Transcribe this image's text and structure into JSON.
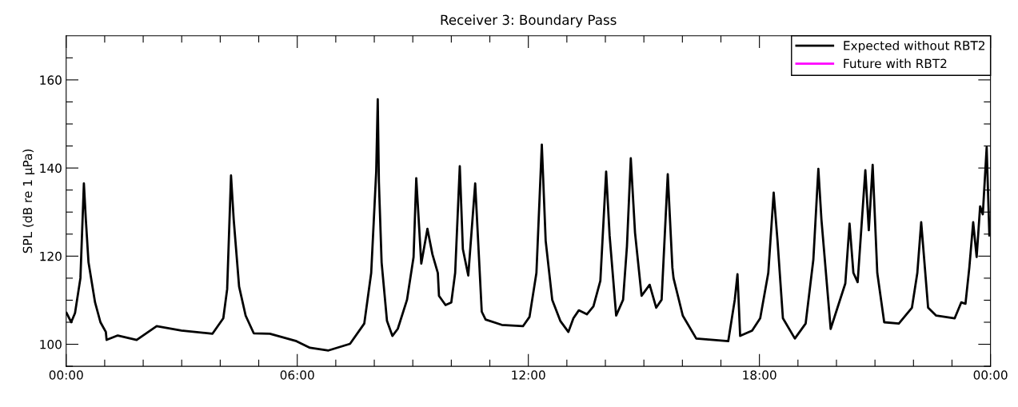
{
  "chart_data": {
    "type": "line",
    "title": "Receiver 3: Boundary Pass",
    "ylabel": "SPL (dB re 1 μPa)",
    "xlim": [
      0,
      24
    ],
    "ylim": [
      95,
      170
    ],
    "xticks": [
      {
        "value": 0,
        "label": "00:00"
      },
      {
        "value": 1,
        "label": null
      },
      {
        "value": 2,
        "label": null
      },
      {
        "value": 3,
        "label": null
      },
      {
        "value": 4,
        "label": null
      },
      {
        "value": 5,
        "label": null
      },
      {
        "value": 6,
        "label": "06:00"
      },
      {
        "value": 7,
        "label": null
      },
      {
        "value": 8,
        "label": null
      },
      {
        "value": 9,
        "label": null
      },
      {
        "value": 10,
        "label": null
      },
      {
        "value": 11,
        "label": null
      },
      {
        "value": 12,
        "label": "12:00"
      },
      {
        "value": 13,
        "label": null
      },
      {
        "value": 14,
        "label": null
      },
      {
        "value": 15,
        "label": null
      },
      {
        "value": 16,
        "label": null
      },
      {
        "value": 17,
        "label": null
      },
      {
        "value": 18,
        "label": "18:00"
      },
      {
        "value": 19,
        "label": null
      },
      {
        "value": 20,
        "label": null
      },
      {
        "value": 21,
        "label": null
      },
      {
        "value": 22,
        "label": null
      },
      {
        "value": 23,
        "label": null
      },
      {
        "value": 24,
        "label": "00:00"
      }
    ],
    "yticks": [
      {
        "value": 95,
        "label": null
      },
      100,
      {
        "value": 105,
        "label": null
      },
      {
        "value": 110,
        "label": null
      },
      {
        "value": 115,
        "label": null
      },
      120,
      {
        "value": 125,
        "label": null
      },
      {
        "value": 130,
        "label": null
      },
      {
        "value": 135,
        "label": null
      },
      140,
      {
        "value": 145,
        "label": null
      },
      {
        "value": 150,
        "label": null
      },
      {
        "value": 155,
        "label": null
      },
      160,
      {
        "value": 165,
        "label": null
      }
    ],
    "grid": false,
    "legend": "top right",
    "line_style": "solid",
    "marker": "none",
    "series": [
      {
        "name": "Expected without RBT2",
        "color": "#000000",
        "x": [
          0.01,
          0.13,
          0.23,
          0.37,
          0.46,
          0.51,
          0.58,
          0.75,
          0.89,
          1.03,
          1.05,
          1.34,
          1.83,
          2.35,
          2.99,
          3.8,
          4.08,
          4.18,
          4.28,
          4.35,
          4.49,
          4.66,
          4.87,
          5.29,
          5.98,
          6.33,
          6.81,
          7.37,
          7.74,
          7.92,
          8.05,
          8.09,
          8.12,
          8.19,
          8.33,
          8.47,
          8.61,
          8.85,
          9.02,
          9.09,
          9.22,
          9.38,
          9.51,
          9.65,
          9.68,
          9.85,
          10.0,
          10.1,
          10.22,
          10.3,
          10.44,
          10.62,
          10.79,
          10.89,
          11.31,
          11.86,
          12.03,
          12.21,
          12.35,
          12.45,
          12.62,
          12.83,
          13.04,
          13.17,
          13.31,
          13.52,
          13.69,
          13.87,
          14.02,
          14.11,
          14.28,
          14.46,
          14.56,
          14.66,
          14.77,
          14.94,
          15.15,
          15.32,
          15.46,
          15.62,
          15.74,
          15.77,
          16.01,
          16.36,
          17.19,
          17.36,
          17.43,
          17.5,
          17.81,
          18.02,
          18.23,
          18.37,
          18.47,
          18.61,
          18.92,
          19.2,
          19.4,
          19.53,
          19.61,
          19.85,
          20.23,
          20.34,
          20.44,
          20.55,
          20.75,
          20.84,
          20.94,
          21.06,
          21.24,
          21.62,
          21.96,
          22.1,
          22.2,
          22.38,
          22.59,
          23.07,
          23.24,
          23.35,
          23.45,
          23.55,
          23.64,
          23.73,
          23.8,
          23.9,
          23.97
        ],
        "values": [
          107.1,
          105.0,
          107.1,
          115.0,
          136.5,
          128.4,
          118.6,
          109.5,
          105.0,
          102.8,
          101.0,
          102.0,
          101.0,
          104.1,
          103.1,
          102.4,
          105.9,
          112.5,
          138.3,
          128.3,
          113.1,
          106.5,
          102.5,
          102.4,
          100.7,
          99.2,
          98.6,
          100.1,
          104.7,
          116.2,
          139.2,
          155.6,
          136.8,
          118.6,
          105.3,
          101.9,
          103.5,
          110.1,
          119.8,
          137.7,
          118.3,
          126.2,
          120.4,
          116.2,
          111.0,
          108.9,
          109.5,
          116.2,
          140.4,
          121.6,
          115.6,
          136.5,
          107.4,
          105.6,
          104.4,
          104.1,
          106.2,
          116.2,
          145.3,
          123.5,
          110.1,
          105.3,
          102.8,
          105.9,
          107.7,
          106.8,
          108.6,
          114.4,
          139.2,
          124.7,
          106.5,
          110.1,
          122.2,
          142.2,
          125.3,
          111.0,
          113.5,
          108.3,
          110.1,
          138.6,
          117.4,
          115.0,
          106.5,
          101.3,
          100.7,
          110.1,
          115.9,
          101.9,
          103.1,
          105.9,
          116.2,
          134.4,
          123.5,
          105.9,
          101.3,
          104.7,
          119.2,
          139.8,
          128.3,
          103.5,
          113.8,
          127.4,
          116.2,
          114.1,
          139.5,
          125.9,
          140.7,
          116.2,
          105.0,
          104.7,
          108.3,
          116.2,
          127.7,
          108.3,
          106.5,
          105.9,
          109.5,
          109.2,
          117.4,
          127.7,
          119.8,
          131.3,
          129.5,
          144.7,
          124.7
        ]
      },
      {
        "name": "Future with RBT2",
        "color": "#ff00ff"
      }
    ]
  }
}
